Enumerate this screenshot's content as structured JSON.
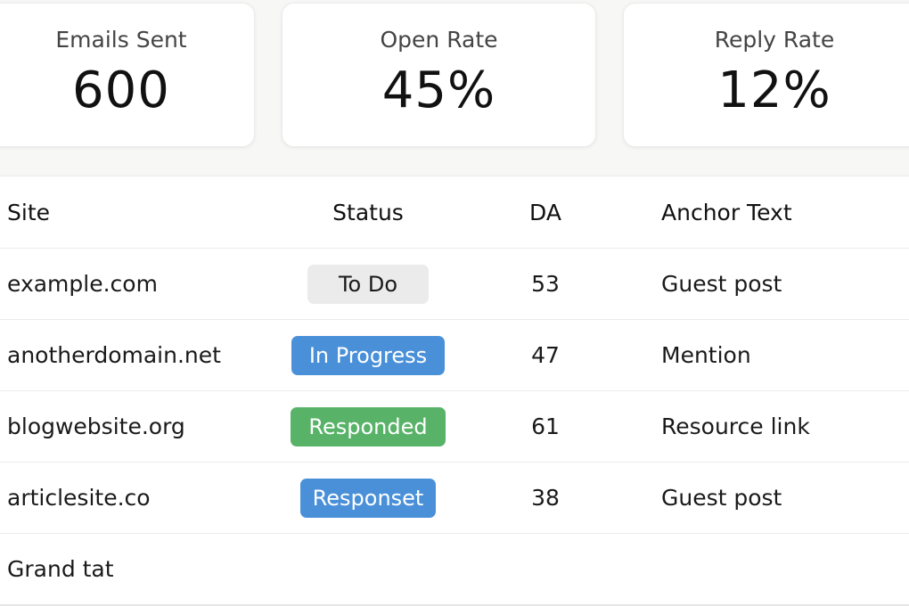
{
  "stats": [
    {
      "label": "Emails Sent",
      "value": "600"
    },
    {
      "label": "Open Rate",
      "value": "45%"
    },
    {
      "label": "Reply Rate",
      "value": "12%"
    }
  ],
  "table": {
    "headers": {
      "site": "Site",
      "status": "Status",
      "da": "DA",
      "anchor": "Anchor Text"
    },
    "rows": [
      {
        "site": "example.com",
        "status": "To Do",
        "da": "53",
        "anchor": "Guest post"
      },
      {
        "site": "anotherdomain.net",
        "status": "In Progress",
        "da": "47",
        "anchor": "Mention"
      },
      {
        "site": "blogwebsite.org",
        "status": "Responded",
        "da": "61",
        "anchor": "Resource link"
      },
      {
        "site": "articlesite.co",
        "status": "Responset",
        "da": "38",
        "anchor": "Guest post"
      }
    ],
    "total_label": "Grand tat"
  },
  "colors": {
    "todo": "#ebebeb",
    "in_progress": "#4a90d9",
    "responded": "#58b368",
    "responset": "#4a90d9"
  }
}
